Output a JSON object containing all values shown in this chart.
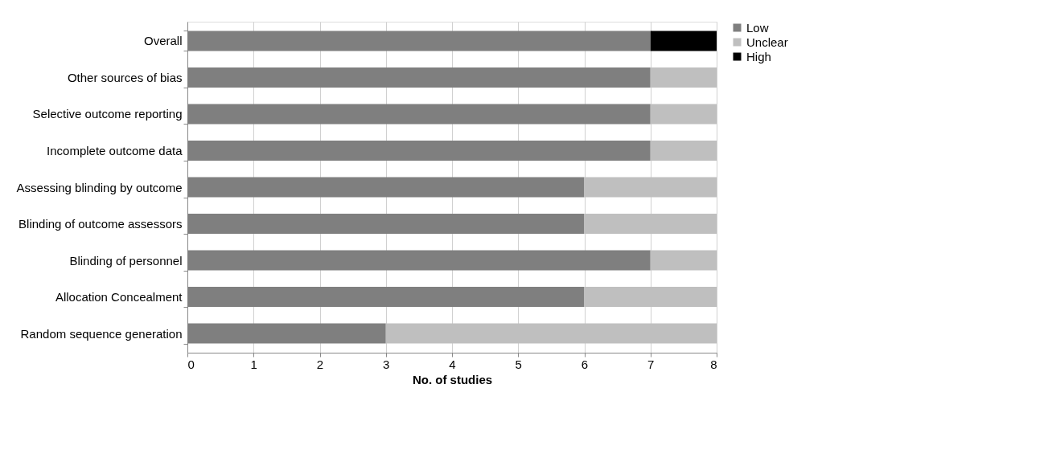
{
  "chart_data": {
    "type": "bar",
    "orientation": "horizontal",
    "stacked": true,
    "xlabel": "No. of studies",
    "categories": [
      "Overall",
      "Other sources of bias",
      "Selective outcome reporting",
      "Incomplete outcome data",
      "Assessing blinding by outcome",
      "Blinding of outcome assessors",
      "Blinding of personnel",
      "Allocation Concealment",
      "Random sequence generation"
    ],
    "series": [
      {
        "name": "Low",
        "color": "#7f7f7f",
        "values": [
          7,
          7,
          7,
          7,
          6,
          6,
          7,
          6,
          3
        ]
      },
      {
        "name": "Unclear",
        "color": "#bfbfbf",
        "values": [
          null,
          1,
          1,
          1,
          2,
          2,
          1,
          2,
          5
        ]
      },
      {
        "name": "High",
        "color": "#000000",
        "values": [
          1,
          null,
          null,
          null,
          null,
          null,
          null,
          null,
          null
        ]
      }
    ],
    "xlim": [
      0,
      8
    ],
    "xticks": [
      0,
      1,
      2,
      3,
      4,
      5,
      6,
      7,
      8
    ],
    "grid": "x",
    "legend": "right"
  }
}
